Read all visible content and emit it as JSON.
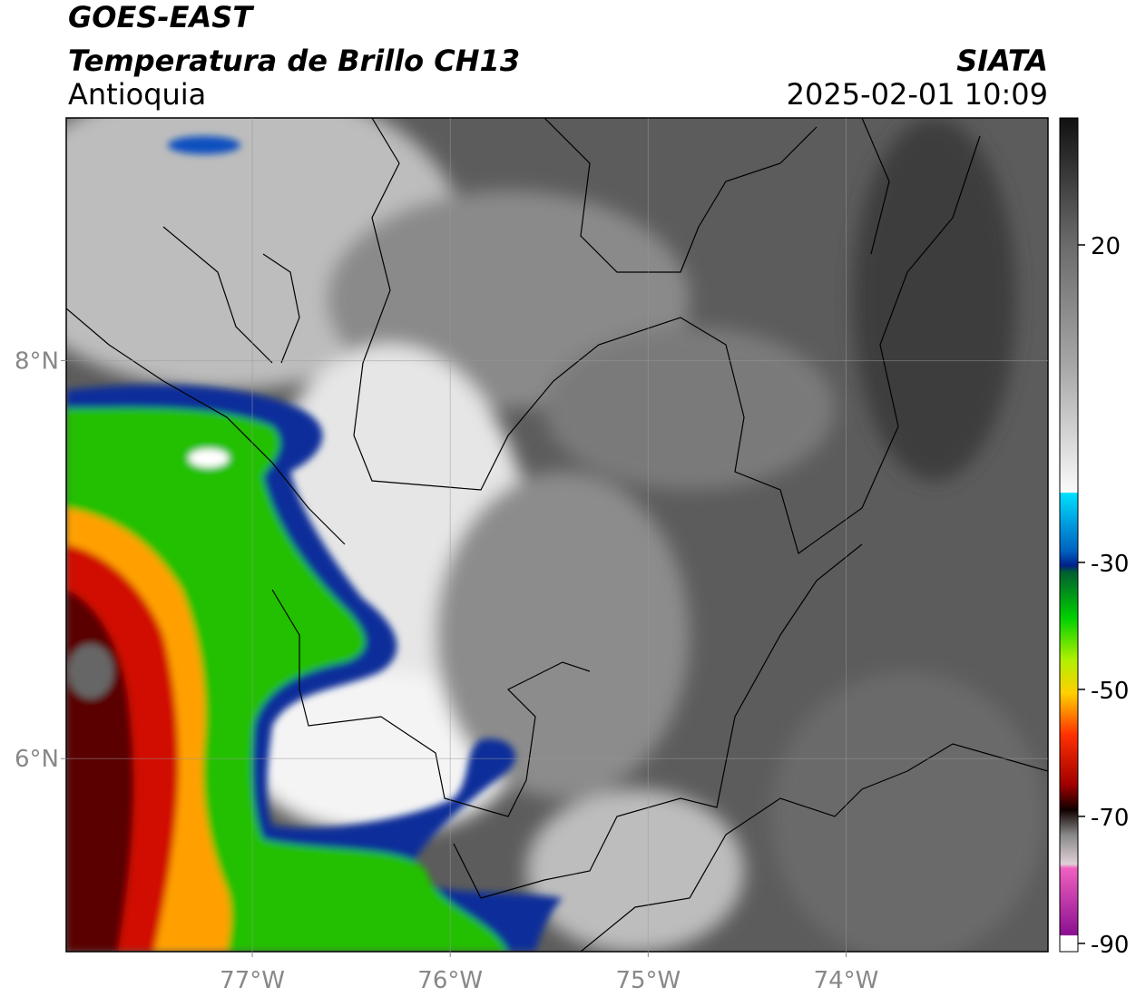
{
  "header": {
    "title": "GOES-EAST",
    "subtitle": "Temperatura de Brillo CH13",
    "region": "Antioquia",
    "source": "SIATA",
    "datetime": "2025-02-01 10:09"
  },
  "map": {
    "xlim": [
      -77.94,
      -72.98
    ],
    "ylim": [
      5.03,
      9.22
    ],
    "xticks": [
      {
        "value": -77,
        "label": "77°W"
      },
      {
        "value": -76,
        "label": "76°W"
      },
      {
        "value": -75,
        "label": "75°W"
      },
      {
        "value": -74,
        "label": "74°W"
      }
    ],
    "yticks": [
      {
        "value": 8,
        "label": "8°N"
      },
      {
        "value": 6,
        "label": "6°N"
      }
    ],
    "grid": true
  },
  "colorbar": {
    "lim": [
      -91.3,
      40
    ],
    "ticks": [
      20,
      -30,
      -50,
      -70,
      -90
    ]
  }
}
